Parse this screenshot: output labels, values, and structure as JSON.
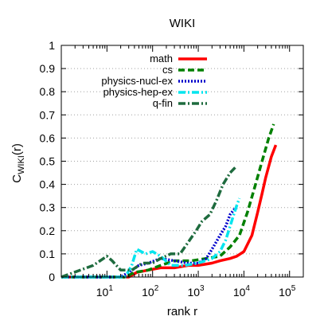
{
  "chart_data": {
    "type": "line",
    "title": "WIKI",
    "xlabel": "rank r",
    "ylabel": "C",
    "ylabel_sub": "WIKI",
    "ylabel_arg": "(r)",
    "x_scale": "log",
    "xlim": [
      1,
      200000
    ],
    "ylim": [
      0,
      1
    ],
    "x_ticks": [
      {
        "value": 10,
        "base": "10",
        "exp": "1"
      },
      {
        "value": 100,
        "base": "10",
        "exp": "2"
      },
      {
        "value": 1000,
        "base": "10",
        "exp": "3"
      },
      {
        "value": 10000,
        "base": "10",
        "exp": "4"
      },
      {
        "value": 100000,
        "base": "10",
        "exp": "5"
      }
    ],
    "y_ticks": [
      "0",
      "0.1",
      "0.2",
      "0.3",
      "0.4",
      "0.5",
      "0.6",
      "0.7",
      "0.8",
      "0.9",
      "1"
    ],
    "grid": "horizontal dotted",
    "legend_position": "top-right",
    "series": [
      {
        "name": "math",
        "color": "#ff0000",
        "dash": "solid",
        "x": [
          1,
          30,
          45,
          80,
          150,
          300,
          600,
          1000,
          2000,
          3000,
          5000,
          7000,
          10000,
          15000,
          20000,
          25000,
          30000,
          40000,
          50000
        ],
        "y": [
          0,
          0,
          0.02,
          0.03,
          0.04,
          0.04,
          0.05,
          0.05,
          0.06,
          0.07,
          0.08,
          0.09,
          0.11,
          0.18,
          0.28,
          0.36,
          0.43,
          0.52,
          0.57
        ]
      },
      {
        "name": "cs",
        "color": "#008000",
        "dash": "dashed",
        "x": [
          1,
          25,
          40,
          80,
          150,
          300,
          700,
          1500,
          3000,
          5000,
          8000,
          12000,
          18000,
          25000,
          35000,
          45000
        ],
        "y": [
          0,
          0,
          0.02,
          0.03,
          0.05,
          0.07,
          0.07,
          0.08,
          0.09,
          0.13,
          0.18,
          0.28,
          0.4,
          0.5,
          0.6,
          0.66
        ]
      },
      {
        "name": "physics-nucl-ex",
        "color": "#0000cc",
        "dash": "dotted",
        "x": [
          1,
          20,
          30,
          50,
          80,
          150,
          300,
          600,
          1000,
          1500,
          2000,
          3000,
          4000,
          5000,
          6000,
          7000
        ],
        "y": [
          0,
          0,
          0.02,
          0.05,
          0.06,
          0.08,
          0.07,
          0.06,
          0.06,
          0.08,
          0.12,
          0.18,
          0.22,
          0.27,
          0.29,
          0.3
        ]
      },
      {
        "name": "physics-hep-ex",
        "color": "#00e5ee",
        "dash": "dashdot",
        "x": [
          1,
          25,
          35,
          45,
          70,
          100,
          150,
          250,
          500,
          1000,
          2000,
          3000,
          4000,
          5000,
          6000,
          7000,
          8000
        ],
        "y": [
          0,
          0,
          0.05,
          0.12,
          0.1,
          0.11,
          0.09,
          0.05,
          0.05,
          0.06,
          0.08,
          0.11,
          0.16,
          0.22,
          0.27,
          0.31,
          0.34
        ]
      },
      {
        "name": "q-fin",
        "color": "#1e6b3e",
        "dash": "dashdot",
        "x": [
          1,
          5,
          10,
          13,
          20,
          35,
          60,
          100,
          150,
          250,
          400,
          600,
          900,
          1200,
          1800,
          2500,
          3500,
          5000,
          7000
        ],
        "y": [
          0,
          0.05,
          0.09,
          0.07,
          0.03,
          0.03,
          0.06,
          0.06,
          0.08,
          0.1,
          0.1,
          0.15,
          0.2,
          0.24,
          0.27,
          0.33,
          0.4,
          0.45,
          0.48
        ]
      }
    ]
  }
}
